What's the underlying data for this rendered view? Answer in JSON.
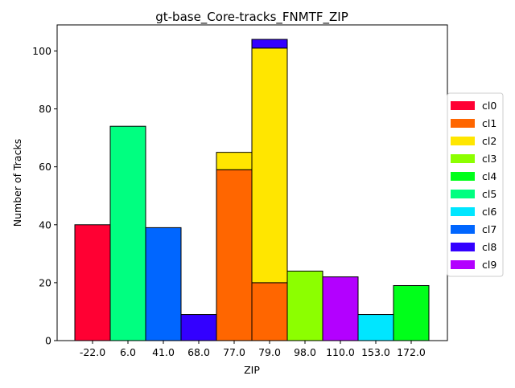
{
  "chart_data": {
    "type": "bar",
    "stacked": true,
    "title": "gt-base_Core-tracks_FNMTF_ZIP",
    "xlabel": "ZIP",
    "ylabel": "Number of Tracks",
    "ylim": [
      0,
      109
    ],
    "yticks": [
      0,
      20,
      40,
      60,
      80,
      100
    ],
    "grid": false,
    "legend_placement": "right",
    "categories": [
      "-22.0",
      "6.0",
      "41.0",
      "68.0",
      "77.0",
      "79.0",
      "98.0",
      "110.0",
      "153.0",
      "172.0"
    ],
    "series": [
      {
        "name": "cl0",
        "color": "#ff0033",
        "values": [
          40,
          0,
          0,
          0,
          0,
          0,
          0,
          0,
          0,
          0
        ]
      },
      {
        "name": "cl1",
        "color": "#ff6600",
        "values": [
          0,
          0,
          0,
          0,
          59,
          20,
          0,
          0,
          0,
          0
        ]
      },
      {
        "name": "cl2",
        "color": "#ffe600",
        "values": [
          0,
          0,
          0,
          0,
          6,
          81,
          0,
          0,
          0,
          0
        ]
      },
      {
        "name": "cl3",
        "color": "#8cff00",
        "values": [
          0,
          0,
          0,
          0,
          0,
          0,
          24,
          0,
          0,
          0
        ]
      },
      {
        "name": "cl4",
        "color": "#00ff1a",
        "values": [
          0,
          0,
          0,
          0,
          0,
          0,
          0,
          0,
          0,
          19
        ]
      },
      {
        "name": "cl5",
        "color": "#00ff80",
        "values": [
          0,
          74,
          0,
          0,
          0,
          0,
          0,
          0,
          0,
          0
        ]
      },
      {
        "name": "cl6",
        "color": "#00e6ff",
        "values": [
          0,
          0,
          0,
          0,
          0,
          0,
          0,
          0,
          9,
          0
        ]
      },
      {
        "name": "cl7",
        "color": "#0066ff",
        "values": [
          0,
          0,
          39,
          0,
          0,
          0,
          0,
          0,
          0,
          0
        ]
      },
      {
        "name": "cl8",
        "color": "#3300ff",
        "values": [
          0,
          0,
          0,
          9,
          0,
          3,
          0,
          0,
          0,
          0
        ]
      },
      {
        "name": "cl9",
        "color": "#b300ff",
        "values": [
          0,
          0,
          0,
          0,
          0,
          0,
          0,
          22,
          0,
          0
        ]
      }
    ]
  }
}
